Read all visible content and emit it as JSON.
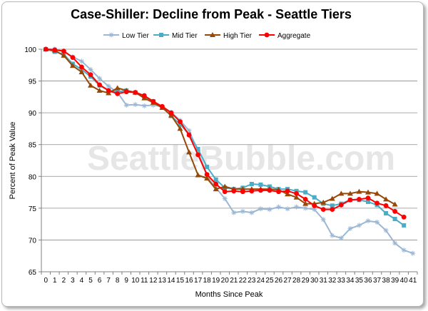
{
  "chart_data": {
    "type": "line",
    "title": "Case-Shiller: Decline from Peak - Seattle Tiers",
    "xlabel": "Months Since Peak",
    "ylabel": "Percent of Peak Value",
    "watermark": "SeattleBubble.com",
    "xlim": [
      0,
      41
    ],
    "ylim": [
      65,
      100
    ],
    "y_ticks": [
      65,
      70,
      75,
      80,
      85,
      90,
      95,
      100
    ],
    "grid": "horizontal",
    "legend_position": "top",
    "x": [
      0,
      1,
      2,
      3,
      4,
      5,
      6,
      7,
      8,
      9,
      10,
      11,
      12,
      13,
      14,
      15,
      16,
      17,
      18,
      19,
      20,
      21,
      22,
      23,
      24,
      25,
      26,
      27,
      28,
      29,
      30,
      31,
      32,
      33,
      34,
      35,
      36,
      37,
      38,
      39,
      40,
      41
    ],
    "series": [
      {
        "name": "Low Tier",
        "color": "#9bb7d4",
        "marker": "star",
        "values": [
          100,
          100,
          99.7,
          98.8,
          98.1,
          96.8,
          95.4,
          94.2,
          93.2,
          91.2,
          91.3,
          91.1,
          91.2,
          91,
          90.1,
          88.8,
          87.2,
          84,
          80,
          78.2,
          76.5,
          74.3,
          74.5,
          74.3,
          74.9,
          74.8,
          75.2,
          74.9,
          75.2,
          75,
          74.8,
          73.2,
          70.7,
          70.3,
          71.8,
          72.3,
          73,
          72.8,
          71.5,
          69.5,
          68.4,
          67.9
        ]
      },
      {
        "name": "Mid Tier",
        "color": "#4bacc6",
        "marker": "square",
        "values": [
          100,
          99.6,
          99.2,
          97.7,
          96.8,
          95.7,
          94.3,
          93.5,
          93.3,
          93.5,
          93.2,
          92.4,
          91.8,
          90.9,
          89.5,
          88.2,
          86.6,
          84.3,
          81.5,
          79.5,
          78.2,
          78,
          78.2,
          78.8,
          78.7,
          78.4,
          78,
          78,
          77.7,
          77.5,
          76.7,
          75.7,
          75.4,
          75.7,
          76.3,
          76.3,
          76,
          75.5,
          74.2,
          73.3,
          72.3,
          null
        ]
      },
      {
        "name": "High Tier",
        "color": "#974806",
        "marker": "triangle",
        "values": [
          100,
          99.8,
          99,
          97.4,
          96.4,
          94.3,
          93.5,
          93.1,
          93.9,
          93.5,
          93.2,
          92.3,
          91.6,
          90.8,
          89.6,
          87.5,
          83.8,
          80.2,
          79.7,
          78,
          78.4,
          78,
          78,
          78,
          78,
          78,
          77.9,
          77.2,
          76.7,
          75.7,
          75.7,
          75.9,
          76.5,
          77.3,
          77.3,
          77.6,
          77.5,
          77.3,
          76.4,
          75.6,
          null,
          null
        ]
      },
      {
        "name": "Aggregate",
        "color": "#ff0000",
        "marker": "circle",
        "values": [
          100,
          99.9,
          99.7,
          98.7,
          97.2,
          96,
          94.4,
          93.5,
          93,
          93.3,
          93.2,
          92.7,
          91.8,
          91,
          90,
          88.6,
          86.5,
          83.4,
          80.3,
          78.8,
          77.6,
          77.7,
          77.6,
          77.7,
          77.8,
          77.8,
          77.6,
          77.7,
          77.3,
          76.4,
          75.4,
          74.8,
          74.8,
          75.5,
          76.3,
          76.4,
          76.6,
          75.8,
          75.4,
          74.5,
          73.6,
          null
        ]
      }
    ]
  }
}
